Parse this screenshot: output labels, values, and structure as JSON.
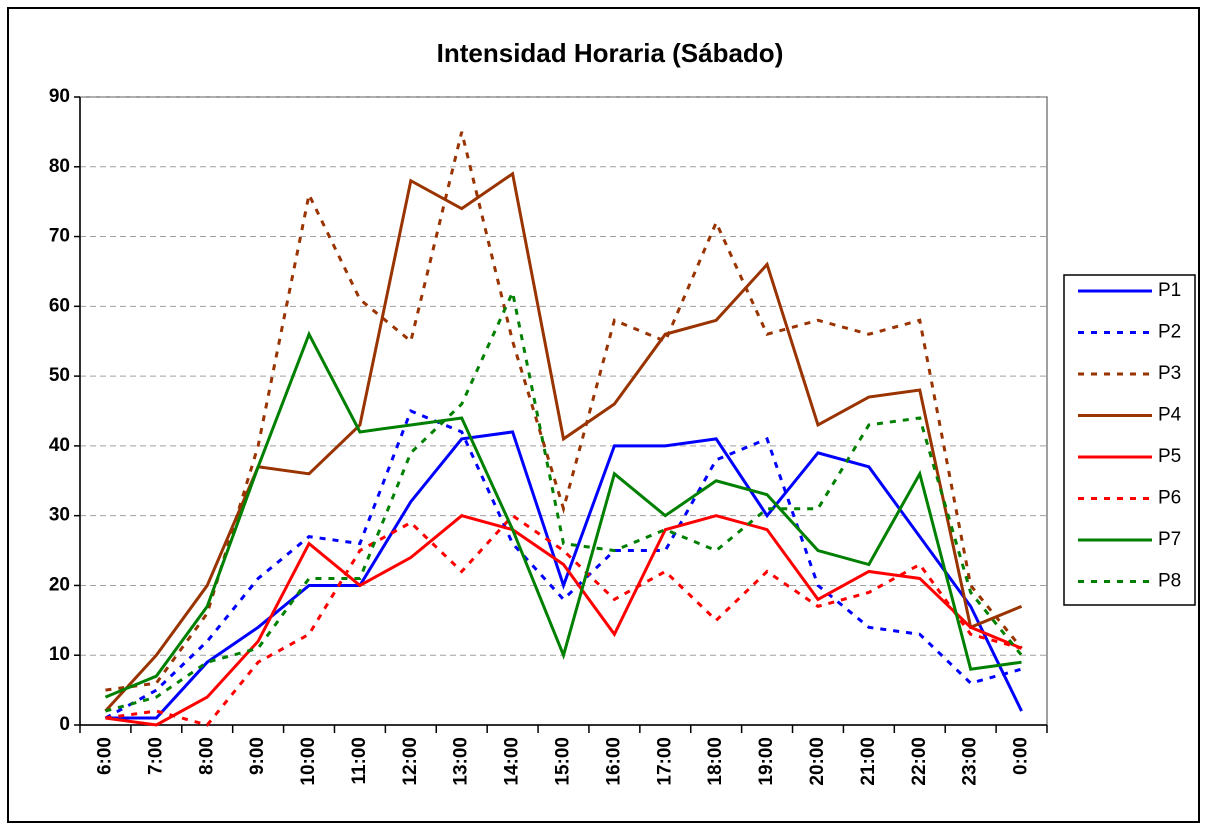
{
  "chart_data": {
    "type": "line",
    "title": "Intensidad Horaria (Sábado)",
    "categories": [
      "6:00",
      "7:00",
      "8:00",
      "9:00",
      "10:00",
      "11:00",
      "12:00",
      "13:00",
      "14:00",
      "15:00",
      "16:00",
      "17:00",
      "18:00",
      "19:00",
      "20:00",
      "21:00",
      "22:00",
      "23:00",
      "0:00"
    ],
    "ylim": [
      0,
      90
    ],
    "yticks": [
      0,
      10,
      20,
      30,
      40,
      50,
      60,
      70,
      80,
      90
    ],
    "grid": true,
    "legend": "right",
    "series": [
      {
        "name": "P1",
        "color": "#0000ff",
        "style": "solid",
        "values": [
          1,
          1,
          9,
          14,
          20,
          20,
          32,
          41,
          42,
          20,
          40,
          40,
          41,
          30,
          39,
          37,
          27,
          17,
          2
        ]
      },
      {
        "name": "P2",
        "color": "#0000ff",
        "style": "dashed",
        "values": [
          1,
          5,
          12,
          21,
          27,
          26,
          45,
          42,
          26,
          18,
          25,
          25,
          38,
          41,
          20,
          14,
          13,
          6,
          8
        ]
      },
      {
        "name": "P3",
        "color": "#993300",
        "style": "dashed",
        "values": [
          5,
          6,
          16,
          40,
          76,
          61,
          55,
          85,
          55,
          31,
          58,
          55,
          72,
          56,
          58,
          56,
          58,
          20,
          11
        ]
      },
      {
        "name": "P4",
        "color": "#993300",
        "style": "solid",
        "values": [
          2,
          10,
          20,
          37,
          36,
          43,
          78,
          74,
          79,
          41,
          46,
          56,
          58,
          66,
          43,
          47,
          48,
          14,
          17
        ]
      },
      {
        "name": "P5",
        "color": "#ff0000",
        "style": "solid",
        "values": [
          1,
          0,
          4,
          12,
          26,
          20,
          24,
          30,
          28,
          23,
          13,
          28,
          30,
          28,
          18,
          22,
          21,
          14,
          11
        ]
      },
      {
        "name": "P6",
        "color": "#ff0000",
        "style": "dashed",
        "values": [
          1,
          2,
          0,
          9,
          13,
          25,
          29,
          22,
          30,
          25,
          18,
          22,
          15,
          22,
          17,
          19,
          23,
          13,
          11
        ]
      },
      {
        "name": "P7",
        "color": "#008000",
        "style": "solid",
        "values": [
          4,
          7,
          17,
          37,
          56,
          42,
          43,
          44,
          28,
          10,
          36,
          30,
          35,
          33,
          25,
          23,
          36,
          8,
          9
        ]
      },
      {
        "name": "P8",
        "color": "#008000",
        "style": "dashed",
        "values": [
          2,
          4,
          9,
          11,
          21,
          21,
          39,
          46,
          62,
          26,
          25,
          28,
          25,
          31,
          31,
          43,
          44,
          19,
          10
        ]
      }
    ]
  }
}
